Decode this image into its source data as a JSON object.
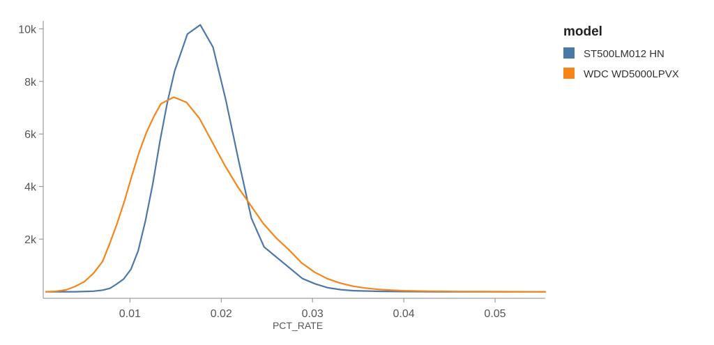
{
  "chart_data": {
    "type": "line",
    "xlabel": "PCT_RATE",
    "ylabel": "",
    "xlim": [
      0.0005,
      0.0555
    ],
    "ylim": [
      -250,
      10300
    ],
    "x_ticks": [
      0.01,
      0.02,
      0.03,
      0.04,
      0.05
    ],
    "x_tick_labels": [
      "0.01",
      "0.02",
      "0.03",
      "0.04",
      "0.05"
    ],
    "y_ticks": [
      2000,
      4000,
      6000,
      8000,
      10000
    ],
    "y_tick_labels": [
      "2k",
      "4k",
      "6k",
      "8k",
      "10k"
    ],
    "grid": false,
    "legend": {
      "title": "model",
      "position": "top-right"
    },
    "series": [
      {
        "name": "ST500LM012 HN",
        "color": "#4c78a8",
        "points": [
          [
            0.0008,
            0
          ],
          [
            0.004,
            0
          ],
          [
            0.006,
            20
          ],
          [
            0.007,
            60
          ],
          [
            0.0078,
            130
          ],
          [
            0.0085,
            280
          ],
          [
            0.0093,
            480
          ],
          [
            0.0101,
            850
          ],
          [
            0.0109,
            1550
          ],
          [
            0.0117,
            2700
          ],
          [
            0.0125,
            4100
          ],
          [
            0.0133,
            5750
          ],
          [
            0.0141,
            7200
          ],
          [
            0.0149,
            8400
          ],
          [
            0.0163,
            9800
          ],
          [
            0.0177,
            10150
          ],
          [
            0.0191,
            9300
          ],
          [
            0.0205,
            7300
          ],
          [
            0.0219,
            5000
          ],
          [
            0.0233,
            2800
          ],
          [
            0.0247,
            1700
          ],
          [
            0.0261,
            1300
          ],
          [
            0.0275,
            900
          ],
          [
            0.0289,
            500
          ],
          [
            0.0303,
            300
          ],
          [
            0.0317,
            150
          ],
          [
            0.0331,
            80
          ],
          [
            0.0345,
            40
          ],
          [
            0.0373,
            15
          ],
          [
            0.0401,
            5
          ],
          [
            0.0445,
            0
          ],
          [
            0.0555,
            0
          ]
        ]
      },
      {
        "name": "WDC WD5000LPVX",
        "color": "#f58518",
        "points": [
          [
            0.0008,
            0
          ],
          [
            0.002,
            20
          ],
          [
            0.003,
            70
          ],
          [
            0.004,
            200
          ],
          [
            0.005,
            380
          ],
          [
            0.006,
            700
          ],
          [
            0.007,
            1150
          ],
          [
            0.0078,
            1850
          ],
          [
            0.0086,
            2600
          ],
          [
            0.0094,
            3450
          ],
          [
            0.0102,
            4400
          ],
          [
            0.011,
            5300
          ],
          [
            0.0118,
            6050
          ],
          [
            0.0126,
            6650
          ],
          [
            0.0134,
            7150
          ],
          [
            0.0148,
            7400
          ],
          [
            0.0162,
            7200
          ],
          [
            0.0176,
            6600
          ],
          [
            0.019,
            5700
          ],
          [
            0.0204,
            4800
          ],
          [
            0.0218,
            4000
          ],
          [
            0.0232,
            3300
          ],
          [
            0.0246,
            2600
          ],
          [
            0.026,
            2050
          ],
          [
            0.0274,
            1600
          ],
          [
            0.0288,
            1100
          ],
          [
            0.0302,
            750
          ],
          [
            0.0316,
            500
          ],
          [
            0.033,
            330
          ],
          [
            0.0344,
            210
          ],
          [
            0.0358,
            140
          ],
          [
            0.0372,
            90
          ],
          [
            0.0386,
            60
          ],
          [
            0.04,
            40
          ],
          [
            0.0428,
            20
          ],
          [
            0.0456,
            10
          ],
          [
            0.0512,
            2
          ],
          [
            0.0555,
            0
          ]
        ]
      }
    ]
  }
}
